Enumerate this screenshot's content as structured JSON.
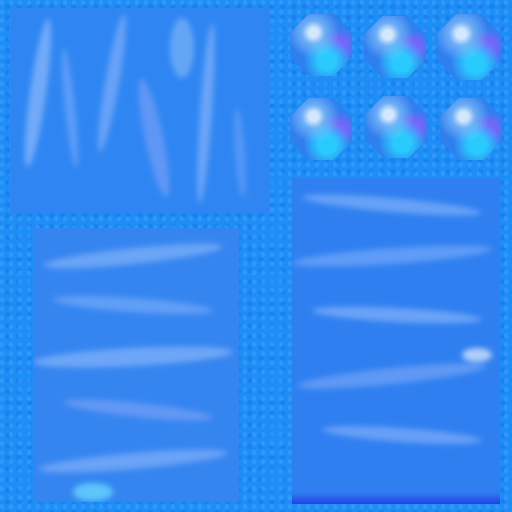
{
  "texture": {
    "base_color": "#1c8ef6",
    "panel_color": "#2f86f2",
    "highlight_color": "#a8d2ff",
    "accent_purple": "#9b6cff",
    "accent_cyan": "#3fd8ff"
  },
  "panels": [
    {
      "id": "top-left",
      "pattern": "vertical-streaks"
    },
    {
      "id": "bottom-left",
      "pattern": "horizontal-ripples"
    },
    {
      "id": "right",
      "pattern": "horizontal-ripples"
    }
  ],
  "gems": {
    "count": 6,
    "shape": "octagon"
  }
}
